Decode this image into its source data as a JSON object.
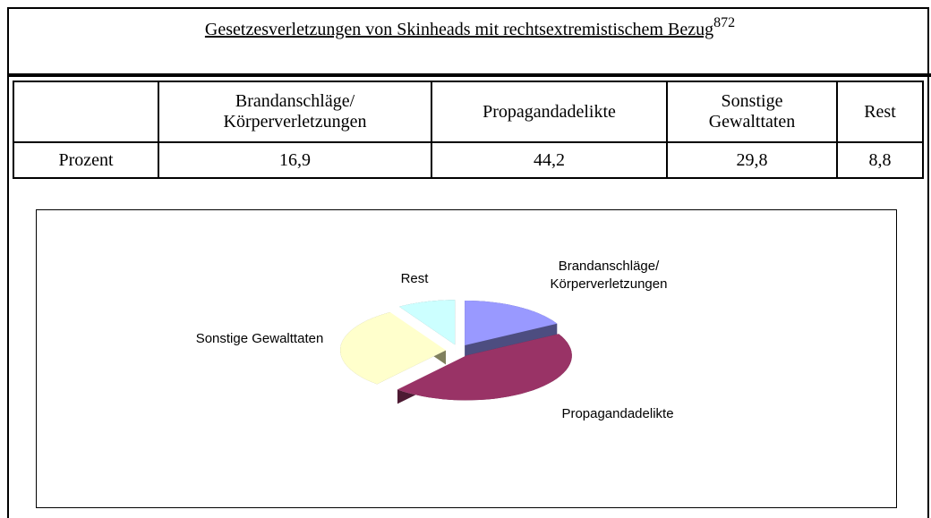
{
  "header": {
    "title": "Gesetzesverletzungen von Skinheads mit rechtsextremistischem Bezug",
    "footnote": "872"
  },
  "table": {
    "columns": [
      "Brandanschläge/\nKörperverletzungen",
      "Propagandadelikte",
      "Sonstige\nGewalttaten",
      "Rest"
    ],
    "rows": [
      [
        "Prozent",
        "16,9",
        "44,2",
        "29,8",
        "8,8"
      ]
    ]
  },
  "chart_data": {
    "type": "pie",
    "categories": [
      "Brandanschläge/\nKörperverletzungen",
      "Propagandadelikte",
      "Sonstige Gewalttaten",
      "Rest"
    ],
    "values": [
      16.9,
      44.2,
      29.8,
      8.8
    ],
    "colors": [
      "#9999ff",
      "#993366",
      "#ffffcc",
      "#ccffff"
    ],
    "side_colors": [
      "#4d4d80",
      "#4d1a33",
      "#80805e",
      "#5e8080"
    ],
    "exploded": true,
    "three_d": true
  }
}
